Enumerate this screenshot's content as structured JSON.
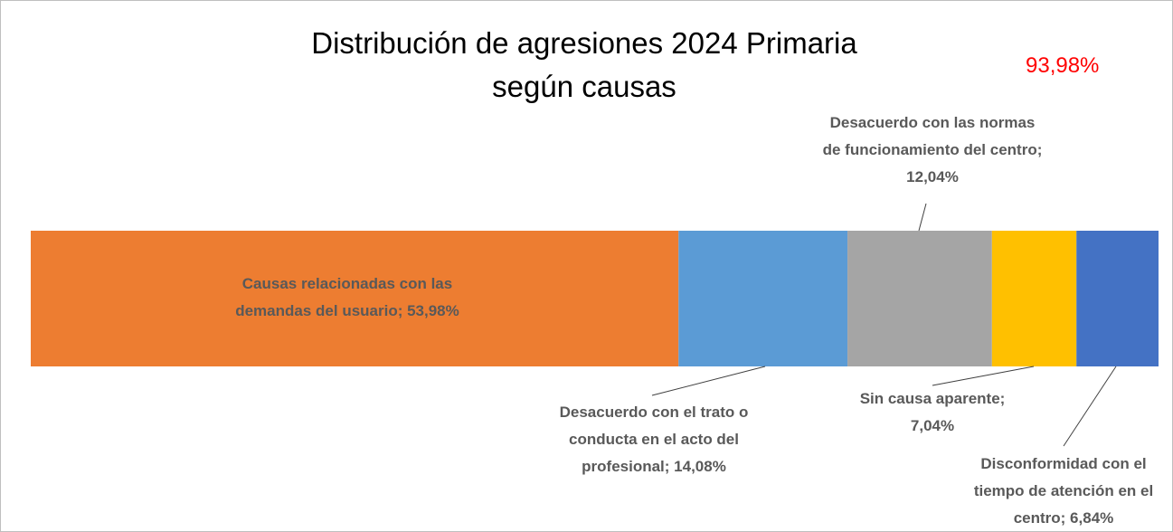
{
  "chart_data": {
    "type": "stacked-bar",
    "title": [
      "Distribución de agresiones 2024 Primaria",
      "según causas"
    ],
    "annotation": {
      "text": "93,98%",
      "color": "#ff0000"
    },
    "xlim": [
      0,
      93.98
    ],
    "segments": [
      {
        "label": "Causas relacionadas con las demandas del usuario; 53,98%",
        "value": 53.98,
        "color": "#ed7d31"
      },
      {
        "label": "Desacuerdo con el trato o conducta en el acto del profesional; 14,08%",
        "value": 14.08,
        "color": "#5b9bd5"
      },
      {
        "label": "Desacuerdo con las normas de funcionamiento del centro; 12,04%",
        "value": 12.04,
        "color": "#a5a5a5"
      },
      {
        "label": "Sin causa aparente; 7,04%",
        "value": 7.04,
        "color": "#ffc000"
      },
      {
        "label": "Disconformidad con el tiempo de atención en el centro; 6,84%",
        "value": 6.84,
        "color": "#4472c4"
      }
    ]
  }
}
